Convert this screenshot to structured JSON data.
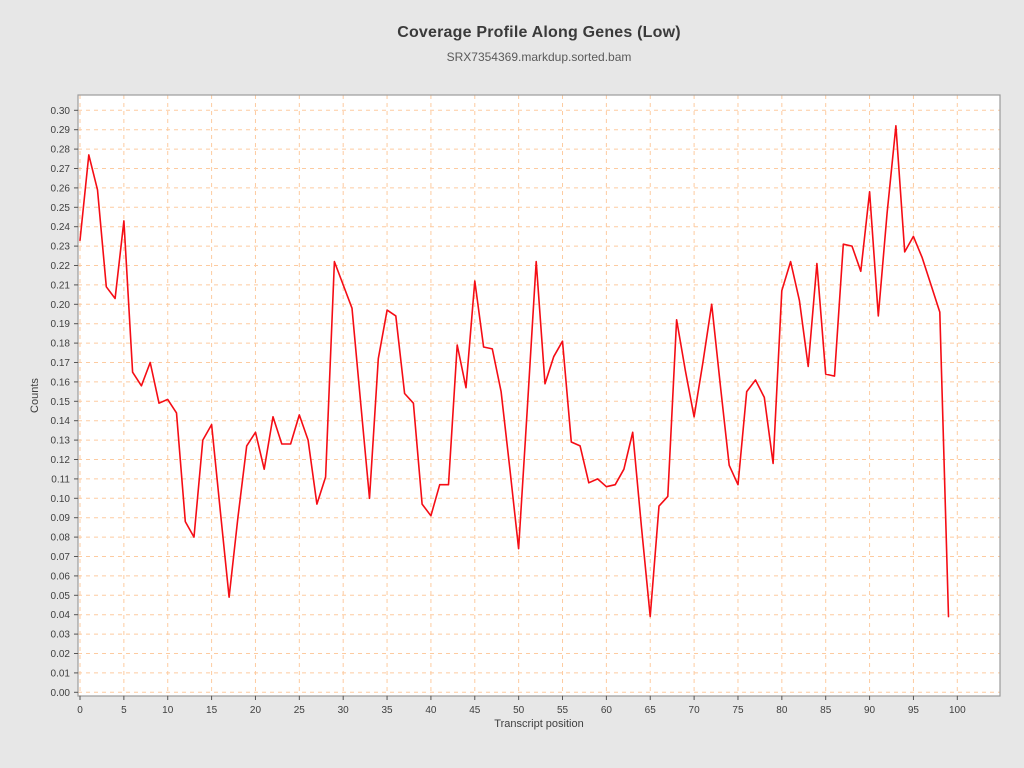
{
  "page": {
    "background": "#e7e7e7"
  },
  "chart_data": {
    "type": "line",
    "title": "Coverage Profile Along Genes (Low)",
    "subtitle": "SRX7354369.markdup.sorted.bam",
    "xlabel": "Transcript position",
    "ylabel": "Counts",
    "x_start": 0,
    "x_step": 1,
    "xlim": [
      0,
      105
    ],
    "ylim": [
      0,
      0.3
    ],
    "x_tick_step": 5,
    "y_tick_step": 0.01,
    "grid": true,
    "legend_position": "none",
    "x_tick_labels": [
      "0",
      "5",
      "10",
      "15",
      "20",
      "25",
      "30",
      "35",
      "40",
      "45",
      "50",
      "55",
      "60",
      "65",
      "70",
      "75",
      "80",
      "85",
      "90",
      "95",
      "100"
    ],
    "y_tick_labels": [
      "0.00",
      "0.01",
      "0.02",
      "0.03",
      "0.04",
      "0.05",
      "0.06",
      "0.07",
      "0.08",
      "0.09",
      "0.10",
      "0.11",
      "0.12",
      "0.13",
      "0.14",
      "0.15",
      "0.16",
      "0.17",
      "0.18",
      "0.19",
      "0.20",
      "0.21",
      "0.22",
      "0.23",
      "0.24",
      "0.25",
      "0.26",
      "0.27",
      "0.28",
      "0.29",
      "0.30"
    ],
    "series": [
      {
        "name": "SRX7354369.markdup.sorted.bam",
        "color": "#f50d15",
        "values": [
          0.233,
          0.277,
          0.259,
          0.209,
          0.203,
          0.243,
          0.165,
          0.158,
          0.17,
          0.149,
          0.151,
          0.144,
          0.088,
          0.08,
          0.13,
          0.138,
          0.093,
          0.049,
          0.09,
          0.127,
          0.134,
          0.115,
          0.142,
          0.128,
          0.128,
          0.143,
          0.13,
          0.097,
          0.111,
          0.222,
          0.21,
          0.198,
          0.149,
          0.1,
          0.172,
          0.197,
          0.194,
          0.154,
          0.149,
          0.097,
          0.091,
          0.107,
          0.107,
          0.179,
          0.157,
          0.212,
          0.178,
          0.177,
          0.155,
          0.115,
          0.074,
          0.147,
          0.222,
          0.159,
          0.173,
          0.181,
          0.129,
          0.127,
          0.108,
          0.11,
          0.106,
          0.107,
          0.115,
          0.134,
          0.085,
          0.039,
          0.096,
          0.101,
          0.192,
          0.166,
          0.142,
          0.17,
          0.2,
          0.158,
          0.117,
          0.107,
          0.155,
          0.161,
          0.152,
          0.118,
          0.207,
          0.222,
          0.202,
          0.168,
          0.221,
          0.164,
          0.163,
          0.231,
          0.23,
          0.217,
          0.258,
          0.194,
          0.247,
          0.292,
          0.227,
          0.235,
          0.224,
          0.21,
          0.196,
          0.039
        ]
      }
    ],
    "colors": {
      "line": "#f50d15",
      "grid": "#fdcba0",
      "plot_background": "#ffffff",
      "page_background": "#e7e7e7",
      "plot_border": "#9b9b9b",
      "tick_mark": "#555555",
      "tick_text": "#3f3f3f",
      "title_text": "#3a3a3a",
      "subtitle_text": "#5a5a5a"
    }
  }
}
